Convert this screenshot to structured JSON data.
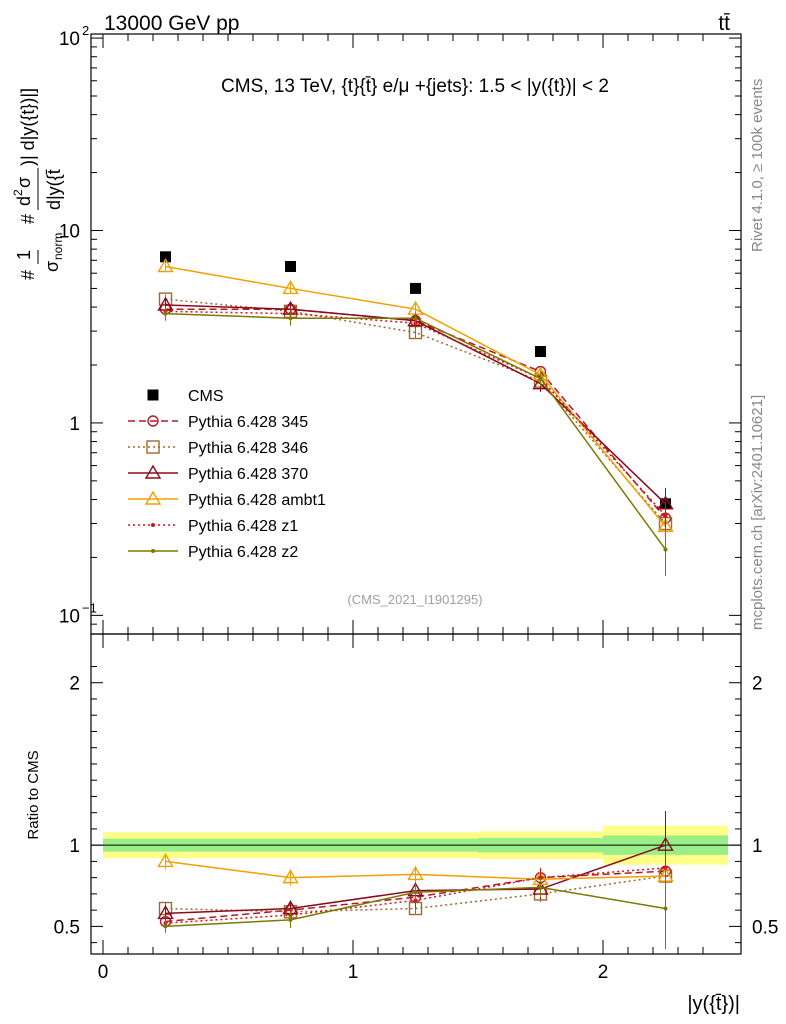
{
  "header": {
    "left": "13000 GeV pp",
    "right": "tt̄"
  },
  "side_labels": {
    "rivet": "Rivet 4.1.0, ≥ 100k events",
    "mcplots": "mcplots.cern.ch [arXiv:2401.10621]"
  },
  "chart_data": [
    {
      "type": "scatter",
      "panel": "main",
      "title": "CMS, 13 TeV, {t}{t̄} e/μ +{jets}: 1.5 < |y({t})| < 2",
      "annotation": "(CMS_2021_I1901295)",
      "ylabel_parts": [
        "#",
        "1",
        "σ",
        "norm",
        "#",
        "d",
        "2",
        "σ",
        "d|y({t̄",
        ")| d|y({t})|]"
      ],
      "yscale": "log",
      "ylim": [
        0.08,
        105
      ],
      "yticks": [
        {
          "v": 100,
          "label": "10",
          "sup": "2"
        },
        {
          "v": 10,
          "label": "10",
          "sup": ""
        },
        {
          "v": 1,
          "label": "1",
          "sup": ""
        },
        {
          "v": 0.1,
          "label": "10",
          "sup": "−1"
        }
      ],
      "x": [
        0.25,
        0.75,
        1.25,
        1.75,
        2.25
      ],
      "xlim": [
        -0.1,
        2.55
      ],
      "series": [
        {
          "name": "CMS",
          "color": "#000000",
          "marker": "square",
          "dash": "none",
          "values": [
            7.3,
            6.5,
            5.0,
            2.35,
            0.38
          ],
          "errors": [
            0,
            0,
            0,
            0,
            0
          ]
        },
        {
          "name": "Pythia 6.428 345",
          "color": "#b2182b",
          "marker": "circle",
          "dash": "dashed",
          "values": [
            3.9,
            3.9,
            3.4,
            1.85,
            0.32
          ],
          "errors": [
            0.25,
            0.25,
            0.2,
            0.12,
            0.05
          ]
        },
        {
          "name": "Pythia 6.428 346",
          "color": "#a0692b",
          "marker": "opensquare",
          "dash": "dotted",
          "values": [
            4.4,
            3.8,
            2.95,
            1.65,
            0.3
          ],
          "errors": [
            0.25,
            0.25,
            0.2,
            0.12,
            0.05
          ]
        },
        {
          "name": "Pythia 6.428 370",
          "color": "#8b0a1e",
          "marker": "triangle",
          "dash": "solid",
          "values": [
            4.1,
            3.9,
            3.4,
            1.6,
            0.38
          ],
          "errors": [
            0.3,
            0.3,
            0.25,
            0.15,
            0.08
          ]
        },
        {
          "name": "Pythia 6.428 ambt1",
          "color": "#f0a000",
          "marker": "triangle",
          "dash": "solid",
          "values": [
            6.5,
            5.0,
            3.9,
            1.78,
            0.29
          ],
          "errors": [
            0.3,
            0.3,
            0.25,
            0.15,
            0.05
          ]
        },
        {
          "name": "Pythia 6.428 z1",
          "color": "#dd1111",
          "marker": "dot",
          "dash": "dotted",
          "values": [
            3.8,
            3.7,
            3.3,
            1.7,
            0.33
          ],
          "errors": [
            0.25,
            0.25,
            0.2,
            0.12,
            0.05
          ]
        },
        {
          "name": "Pythia 6.428 z2",
          "color": "#7a7a00",
          "marker": "dot",
          "dash": "solid",
          "values": [
            3.7,
            3.5,
            3.5,
            1.7,
            0.22
          ],
          "errors": [
            0.3,
            0.3,
            0.25,
            0.15,
            0.06
          ]
        }
      ]
    },
    {
      "type": "scatter",
      "panel": "ratio",
      "ylabel": "Ratio to CMS",
      "xlabel": "|y({t̄})|",
      "ylim": [
        0.33,
        2.3
      ],
      "yticks": [
        0.5,
        1,
        2
      ],
      "xticks": [
        0,
        1,
        2
      ],
      "band_edges": [
        0,
        0.5,
        1.0,
        1.5,
        2.0,
        2.5
      ],
      "band_inner": [
        [
          0.96,
          1.04
        ],
        [
          0.96,
          1.04
        ],
        [
          0.96,
          1.04
        ],
        [
          0.955,
          1.045
        ],
        [
          0.94,
          1.06
        ]
      ],
      "band_outer": [
        [
          0.92,
          1.08
        ],
        [
          0.92,
          1.08
        ],
        [
          0.92,
          1.08
        ],
        [
          0.915,
          1.085
        ],
        [
          0.88,
          1.12
        ]
      ],
      "x": [
        0.25,
        0.75,
        1.25,
        1.75,
        2.25
      ],
      "series": [
        {
          "name": "Pythia 6.428 345",
          "values": [
            0.53,
            0.6,
            0.68,
            0.8,
            0.84
          ],
          "errors": [
            0.04,
            0.04,
            0.05,
            0.06,
            0.1
          ]
        },
        {
          "name": "Pythia 6.428 346",
          "values": [
            0.61,
            0.59,
            0.61,
            0.7,
            0.81
          ],
          "errors": [
            0.04,
            0.04,
            0.04,
            0.05,
            0.1
          ]
        },
        {
          "name": "Pythia 6.428 370",
          "values": [
            0.58,
            0.61,
            0.72,
            0.73,
            1.0
          ],
          "errors": [
            0.05,
            0.05,
            0.05,
            0.06,
            0.21
          ]
        },
        {
          "name": "Pythia 6.428 ambt1",
          "values": [
            0.9,
            0.8,
            0.82,
            0.79,
            0.81
          ],
          "errors": [
            0.05,
            0.05,
            0.05,
            0.06,
            0.1
          ]
        },
        {
          "name": "Pythia 6.428 z1",
          "values": [
            0.52,
            0.57,
            0.66,
            0.8,
            0.86
          ],
          "errors": [
            0.04,
            0.04,
            0.05,
            0.06,
            0.1
          ]
        },
        {
          "name": "Pythia 6.428 z2",
          "values": [
            0.5,
            0.54,
            0.71,
            0.74,
            0.61
          ],
          "errors": [
            0.04,
            0.05,
            0.05,
            0.06,
            0.25
          ]
        }
      ]
    }
  ]
}
